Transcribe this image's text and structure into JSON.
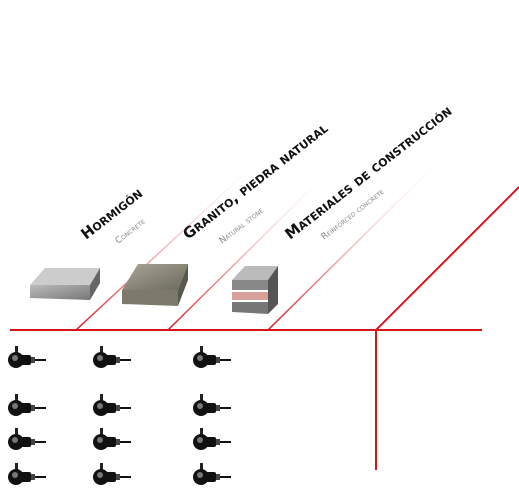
{
  "headers": [
    {
      "title": "Hormigón",
      "subtitle": "Concrete"
    },
    {
      "title": "Granito, piedra natural",
      "subtitle": "Natural stone"
    },
    {
      "title": "Materiales de construcción",
      "subtitle": "Reinforced concrete"
    }
  ]
}
